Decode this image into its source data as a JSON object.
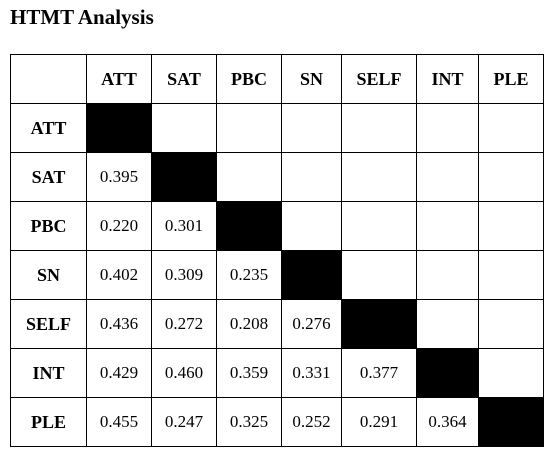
{
  "title": "HTMT Analysis",
  "table": {
    "columns": [
      "ATT",
      "SAT",
      "PBC",
      "SN",
      "SELF",
      "INT",
      "PLE"
    ],
    "rows": [
      {
        "label": "ATT",
        "values": [
          "",
          "",
          "",
          "",
          "",
          "",
          ""
        ]
      },
      {
        "label": "SAT",
        "values": [
          "0.395",
          "",
          "",
          "",
          "",
          "",
          ""
        ]
      },
      {
        "label": "PBC",
        "values": [
          "0.220",
          "0.301",
          "",
          "",
          "",
          "",
          ""
        ]
      },
      {
        "label": "SN",
        "values": [
          "0.402",
          "0.309",
          "0.235",
          "",
          "",
          "",
          ""
        ]
      },
      {
        "label": "SELF",
        "values": [
          "0.436",
          "0.272",
          "0.208",
          "0.276",
          "",
          "",
          ""
        ]
      },
      {
        "label": "INT",
        "values": [
          "0.429",
          "0.460",
          "0.359",
          "0.331",
          "0.377",
          "",
          ""
        ]
      },
      {
        "label": "PLE",
        "values": [
          "0.455",
          "0.247",
          "0.325",
          "0.252",
          "0.291",
          "0.364",
          ""
        ]
      }
    ],
    "diagonal_fill_color": "#000000"
  }
}
